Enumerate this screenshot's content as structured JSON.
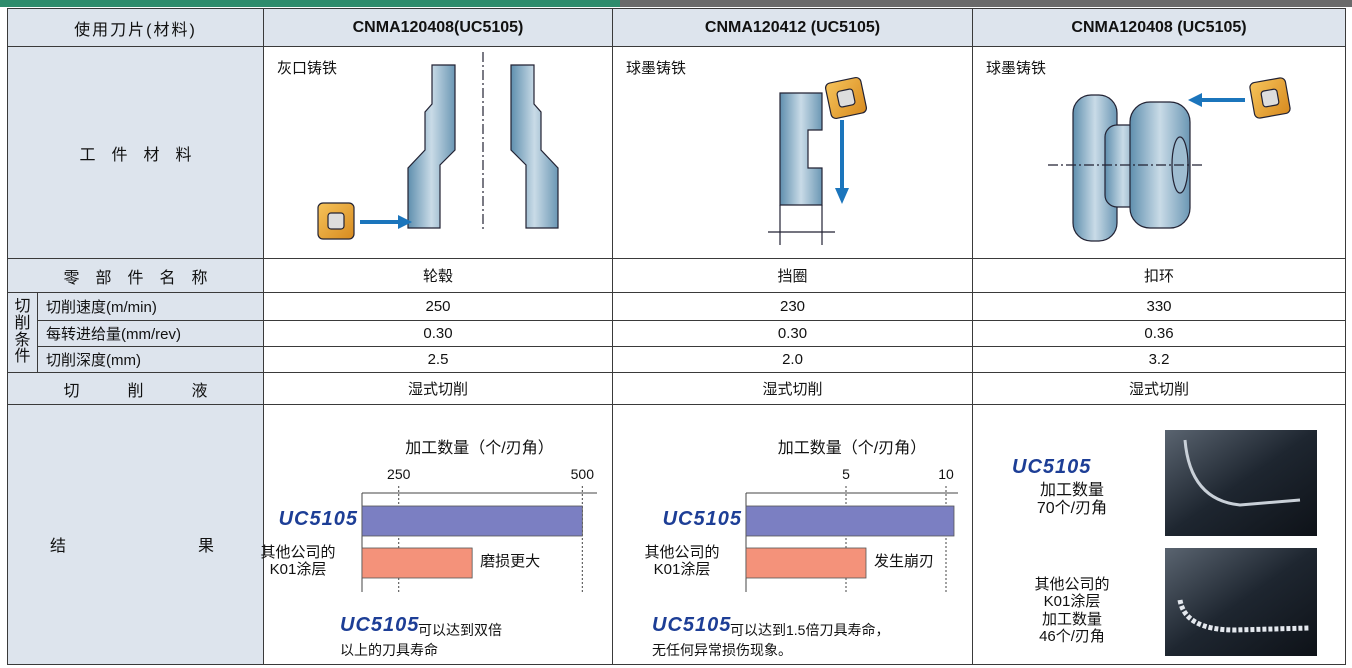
{
  "header": [
    "使用刀片(材料)",
    "CNMA120408(UC5105)",
    "CNMA120412 (UC5105)",
    "CNMA120408 (UC5105)"
  ],
  "workpiece": {
    "label": "工　件　材　料",
    "materials": [
      "灰口铸铁",
      "球墨铸铁",
      "球墨铸铁"
    ]
  },
  "conditions_label": "切\n削\n条\n件",
  "rows": [
    {
      "label": "零　部　件　名　称",
      "values": [
        "轮毂",
        "挡圈",
        "扣环"
      ]
    },
    {
      "label": "切削速度(m/min)",
      "values": [
        "250",
        "230",
        "330"
      ]
    },
    {
      "label": "每转进给量(mm/rev)",
      "values": [
        "0.30",
        "0.30",
        "0.36"
      ]
    },
    {
      "label": "切削深度(mm)",
      "values": [
        "2.5",
        "2.0",
        "3.2"
      ]
    },
    {
      "label": "切　　　削　　　液",
      "values": [
        "湿式切削",
        "湿式切削",
        "湿式切削"
      ]
    }
  ],
  "results": {
    "label": [
      "结",
      "果"
    ],
    "photo_brand": "UC5105",
    "photo_caption_1": "加工数量\n70个/刃角",
    "photo_caption_2": "其他公司的\nK01涂层\n加工数量\n46个/刃角"
  },
  "chart_data": [
    {
      "type": "bar",
      "title": "加工数量（个/刃角）",
      "categories": [
        "UC5105",
        "其他公司的\nK01涂层"
      ],
      "values": [
        500,
        350
      ],
      "colors": [
        "#7b7fc2",
        "#f4927a"
      ],
      "xlim": [
        200,
        520
      ],
      "xticks": [
        250,
        500
      ],
      "annotation": "磨损更大",
      "note_brand": "UC5105",
      "note": "可以达到双倍\n以上的刀具寿命"
    },
    {
      "type": "bar",
      "title": "加工数量（个/刃角）",
      "categories": [
        "UC5105",
        "其他公司的\nK01涂层"
      ],
      "values": [
        10.4,
        6
      ],
      "colors": [
        "#7b7fc2",
        "#f4927a"
      ],
      "xlim": [
        0,
        10.6
      ],
      "xticks": [
        5,
        10
      ],
      "annotation": "发生崩刃",
      "note_brand": "UC5105",
      "note": "可以达到1.5倍刀具寿命，\n无任何异常损伤现象。"
    }
  ]
}
